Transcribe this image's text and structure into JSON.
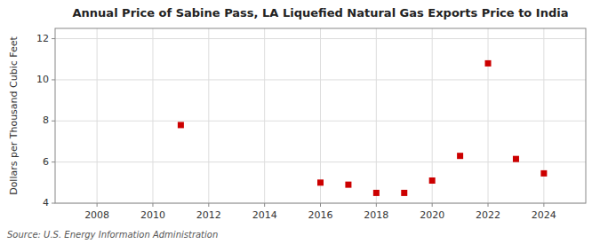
{
  "chart_data": {
    "type": "scatter",
    "title": "Annual Price of Sabine Pass, LA Liquefied Natural Gas Exports Price to India",
    "ylabel": "Dollars per Thousand Cubic Feet",
    "source": "Source: U.S. Energy Information Administration",
    "x": [
      2011,
      2016,
      2017,
      2018,
      2019,
      2020,
      2021,
      2022,
      2023,
      2024
    ],
    "values": [
      7.8,
      5.0,
      4.9,
      4.5,
      4.5,
      5.1,
      6.3,
      10.8,
      6.15,
      5.45
    ],
    "color": "#cc0000",
    "marker": "square",
    "xlim": [
      2006.5,
      2025.5
    ],
    "ylim": [
      4,
      12.5
    ],
    "xticks": [
      2008,
      2010,
      2012,
      2014,
      2016,
      2018,
      2020,
      2022,
      2024
    ],
    "yticks": [
      4,
      6,
      8,
      10,
      12
    ],
    "grid": true
  }
}
